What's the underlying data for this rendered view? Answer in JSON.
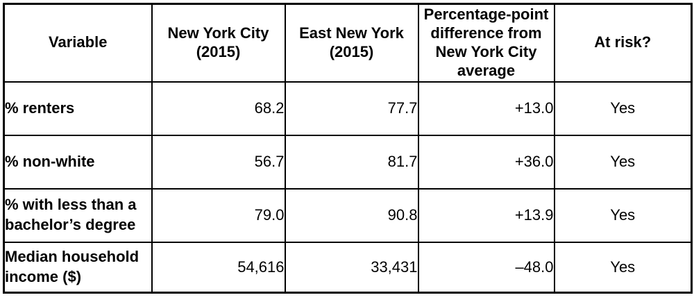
{
  "table": {
    "colors": {
      "border": "#000000",
      "background": "#ffffff",
      "text": "#000000"
    },
    "columns": [
      {
        "label": "Variable"
      },
      {
        "label": "New York City (2015)"
      },
      {
        "label": "East New York (2015)"
      },
      {
        "label": "Percentage-point difference from New York City average"
      },
      {
        "label": "At risk?"
      }
    ],
    "rows": [
      {
        "variable": "% renters",
        "nyc": "68.2",
        "eny": "77.7",
        "diff": "+13.0",
        "at_risk": "Yes"
      },
      {
        "variable": "% non-white",
        "nyc": "56.7",
        "eny": "81.7",
        "diff": "+36.0",
        "at_risk": "Yes"
      },
      {
        "variable": "% with less than a bachelor’s degree",
        "nyc": "79.0",
        "eny": "90.8",
        "diff": "+13.9",
        "at_risk": "Yes"
      },
      {
        "variable": "Median household income ($)",
        "nyc": "54,616",
        "eny": "33,431",
        "diff": "–48.0",
        "at_risk": "Yes"
      }
    ]
  }
}
